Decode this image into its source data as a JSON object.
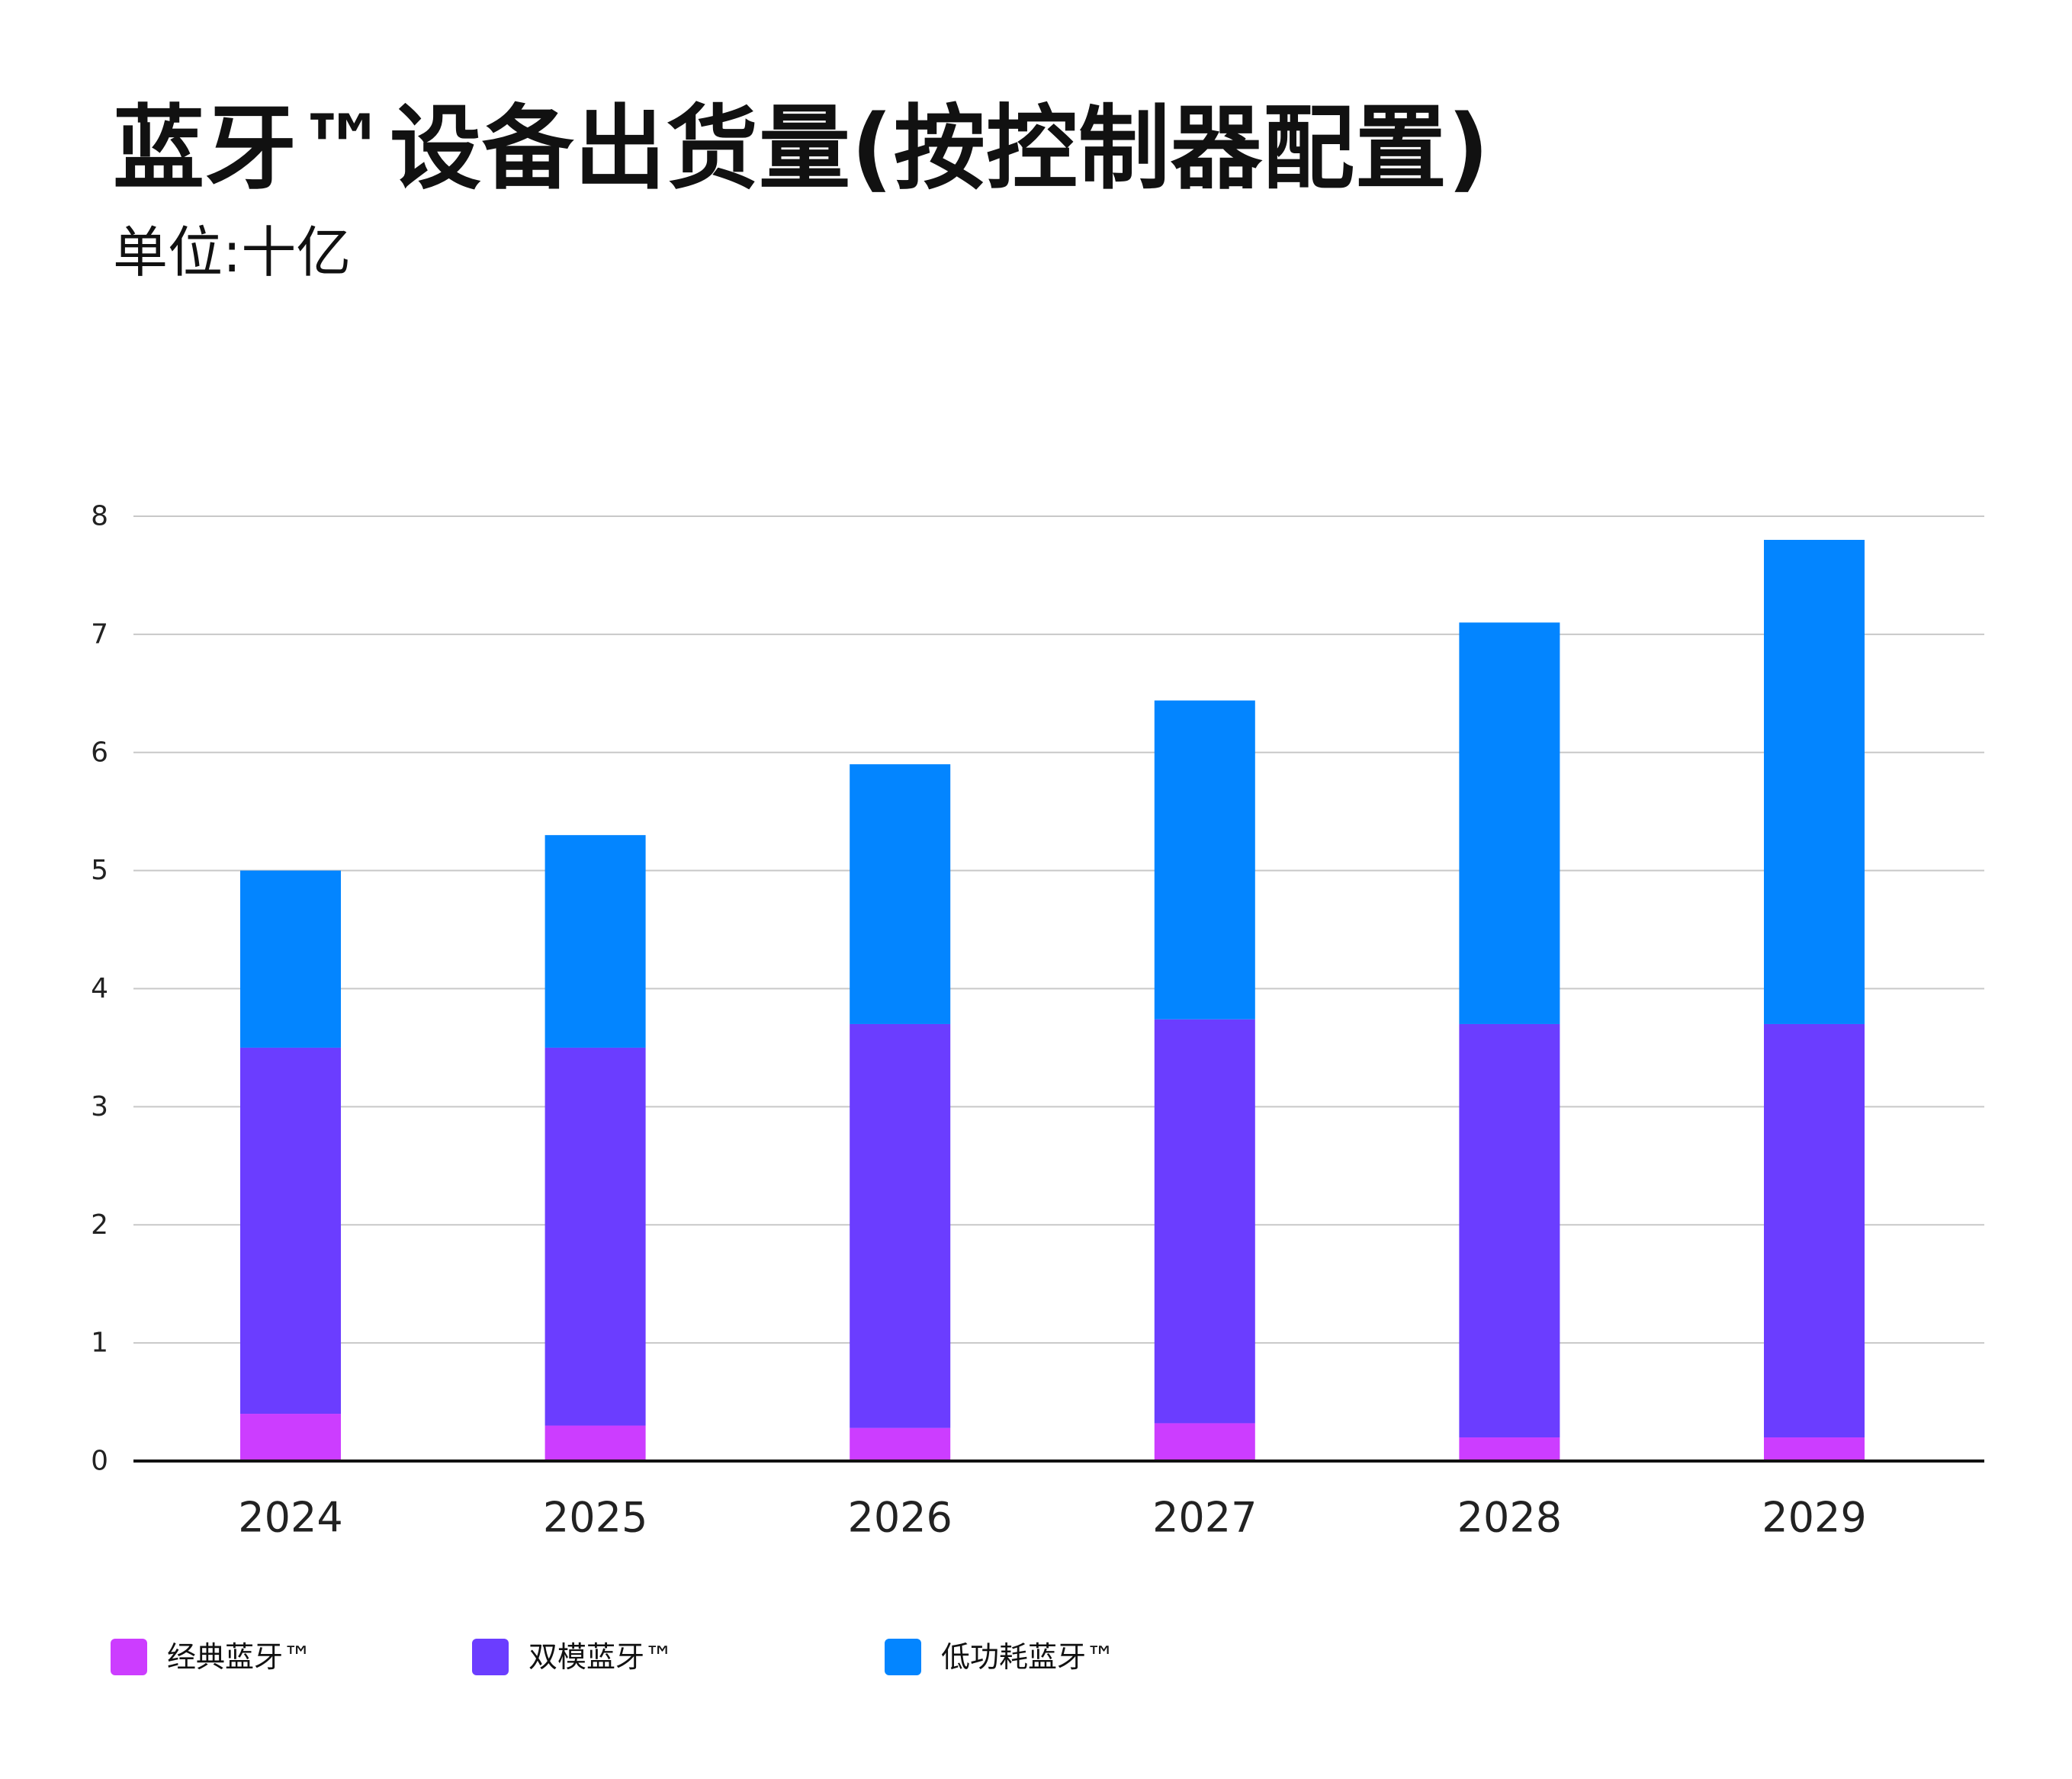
{
  "chart_data": {
    "type": "bar",
    "stacked": true,
    "title": "蓝牙™设备出货量(按控制器配置)",
    "subtitle": "单位:十亿",
    "xlabel": "",
    "ylabel": "",
    "categories": [
      "2024",
      "2025",
      "2026",
      "2027",
      "2028",
      "2029"
    ],
    "series": [
      {
        "name": "经典蓝牙™",
        "color": "#cc3dff",
        "values": [
          0.4,
          0.3,
          0.28,
          0.32,
          0.2,
          0.2
        ]
      },
      {
        "name": "双模蓝牙™",
        "color": "#6b3dff",
        "values": [
          3.1,
          3.2,
          3.42,
          3.42,
          3.5,
          3.5
        ]
      },
      {
        "name": "低功耗蓝牙™",
        "color": "#0385ff",
        "values": [
          1.5,
          1.8,
          2.2,
          2.7,
          3.4,
          4.1
        ]
      }
    ],
    "ylim": [
      0,
      8
    ],
    "yticks": [
      0,
      1,
      2,
      3,
      4,
      5,
      6,
      7,
      8
    ],
    "grid": true,
    "legend_position": "bottom-left"
  }
}
